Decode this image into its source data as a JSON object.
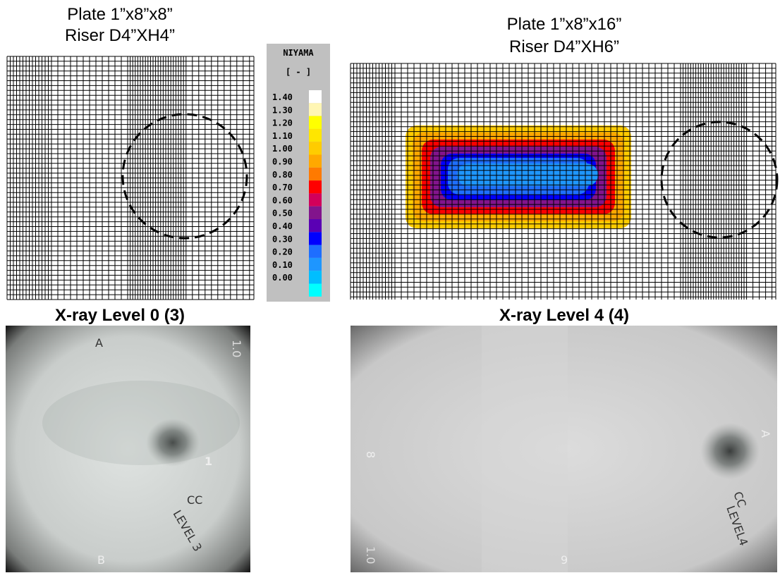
{
  "left_panel": {
    "title_lines": [
      "Plate 1”x8”x8”",
      "Riser D4”XH4”"
    ],
    "xray_caption": "X-ray Level 0 (3)",
    "xray_marks": [
      "A",
      "B",
      "1",
      "CC",
      "LEVEL 3",
      "1.0"
    ]
  },
  "right_panel": {
    "title_lines": [
      "Plate 1”x8”x16”",
      "Riser D4”XH6”"
    ],
    "xray_caption": "X-ray Level 4 (4)",
    "xray_marks": [
      "8",
      "9",
      "A",
      "CC",
      "LEVEL4",
      "1.0"
    ]
  },
  "legend": {
    "title": "NIYAMA",
    "unit": "[ - ]",
    "labels": [
      "1.40",
      "1.30",
      "1.20",
      "1.10",
      "1.00",
      "0.90",
      "0.80",
      "0.70",
      "0.60",
      "0.50",
      "0.40",
      "0.30",
      "0.20",
      "0.10",
      "0.00"
    ],
    "colors": [
      "#ffffff",
      "#fff6b4",
      "#ffff00",
      "#ffe600",
      "#ffcc00",
      "#ffa800",
      "#ff7a00",
      "#ff0000",
      "#d2005a",
      "#82148c",
      "#5a00b4",
      "#0000ff",
      "#1e6eff",
      "#1e96ff",
      "#00beff",
      "#00ffff"
    ]
  }
}
